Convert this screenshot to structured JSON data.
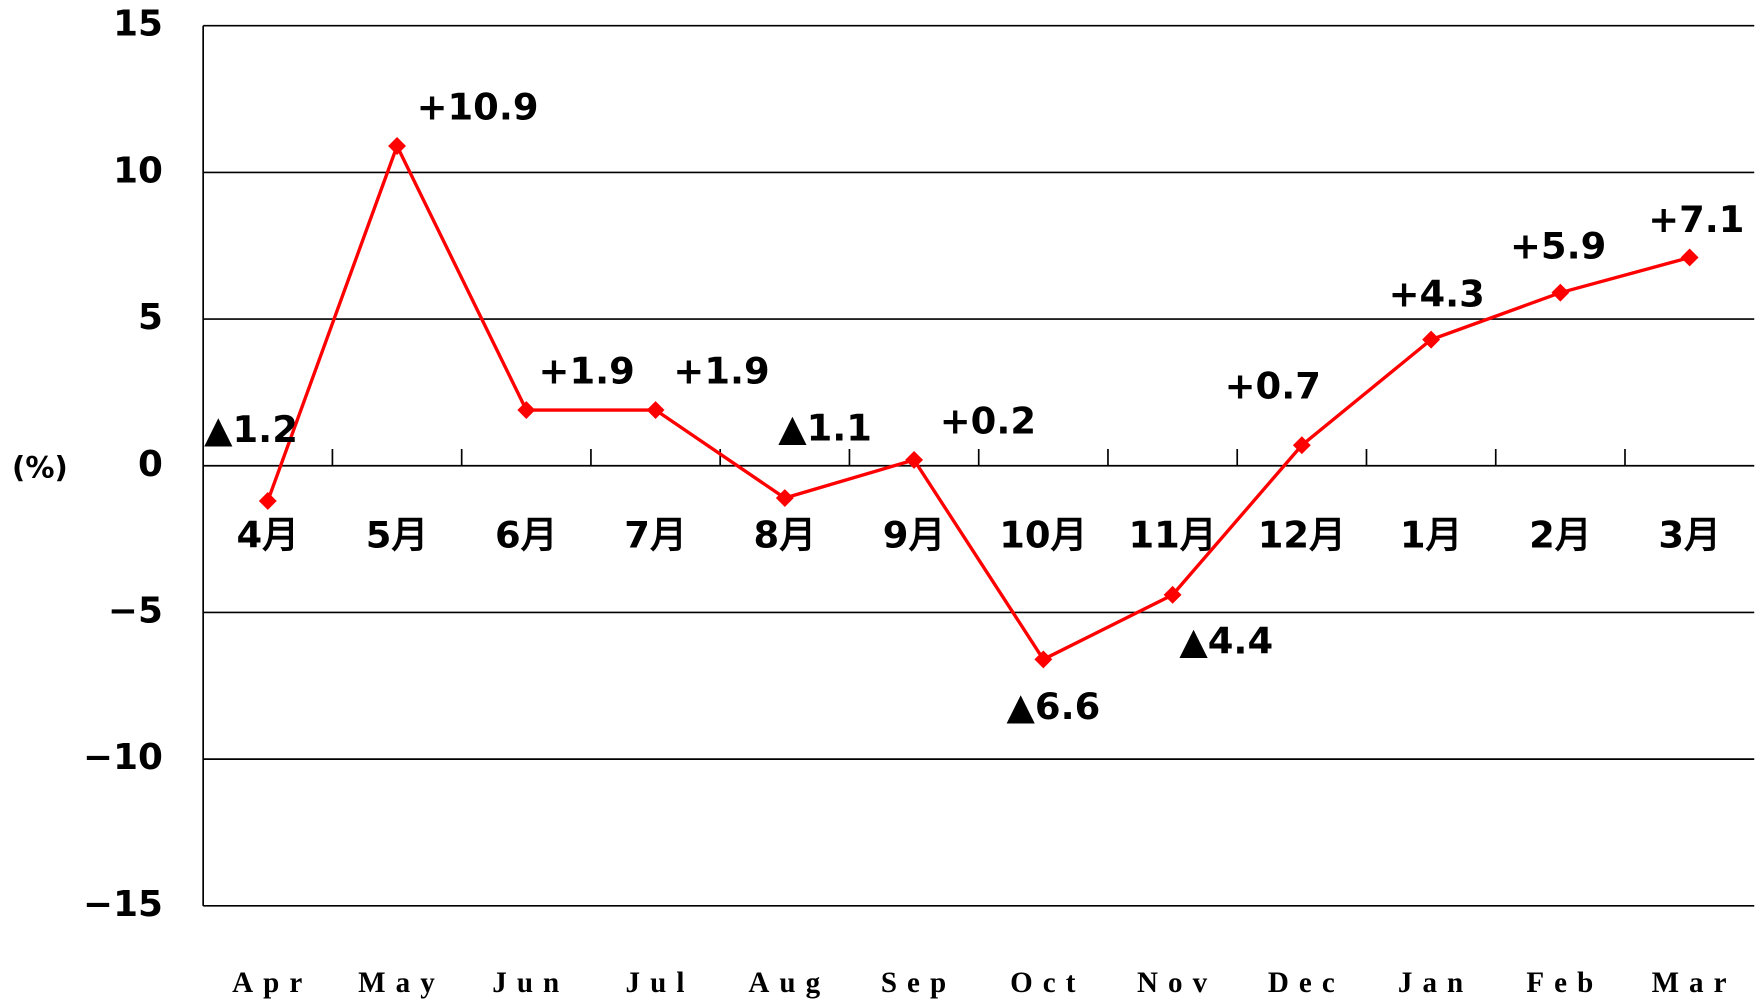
{
  "chart_data": {
    "type": "line",
    "y_label": "(%)",
    "categories": [
      "Apr",
      "May",
      "Jun",
      "Jul",
      "Aug",
      "Sep",
      "Oct",
      "Nov",
      "Dec",
      "Jan",
      "Feb",
      "Mar"
    ],
    "month_labels": [
      "4月",
      "5月",
      "6月",
      "7月",
      "8月",
      "9月",
      "10月",
      "11月",
      "12月",
      "1月",
      "2月",
      "3月"
    ],
    "series": [
      {
        "name": "change",
        "color": "#ff0000",
        "values": [
          -1.2,
          10.9,
          1.9,
          1.9,
          -1.1,
          0.2,
          -6.6,
          -4.4,
          0.7,
          4.3,
          5.9,
          7.1
        ],
        "value_labels": [
          "▲1.2",
          "+10.9",
          "+1.9",
          "+1.9",
          "▲1.1",
          "+0.2",
          "▲6.6",
          "▲4.4",
          "+0.7",
          "+4.3",
          "+5.9",
          "+7.1"
        ]
      }
    ],
    "ylim": [
      -15,
      15
    ],
    "yticks": [
      {
        "value": -15,
        "label": "−15"
      },
      {
        "value": -10,
        "label": "−10"
      },
      {
        "value": -5,
        "label": "−5"
      },
      0,
      5,
      10,
      15
    ],
    "grid": true
  }
}
